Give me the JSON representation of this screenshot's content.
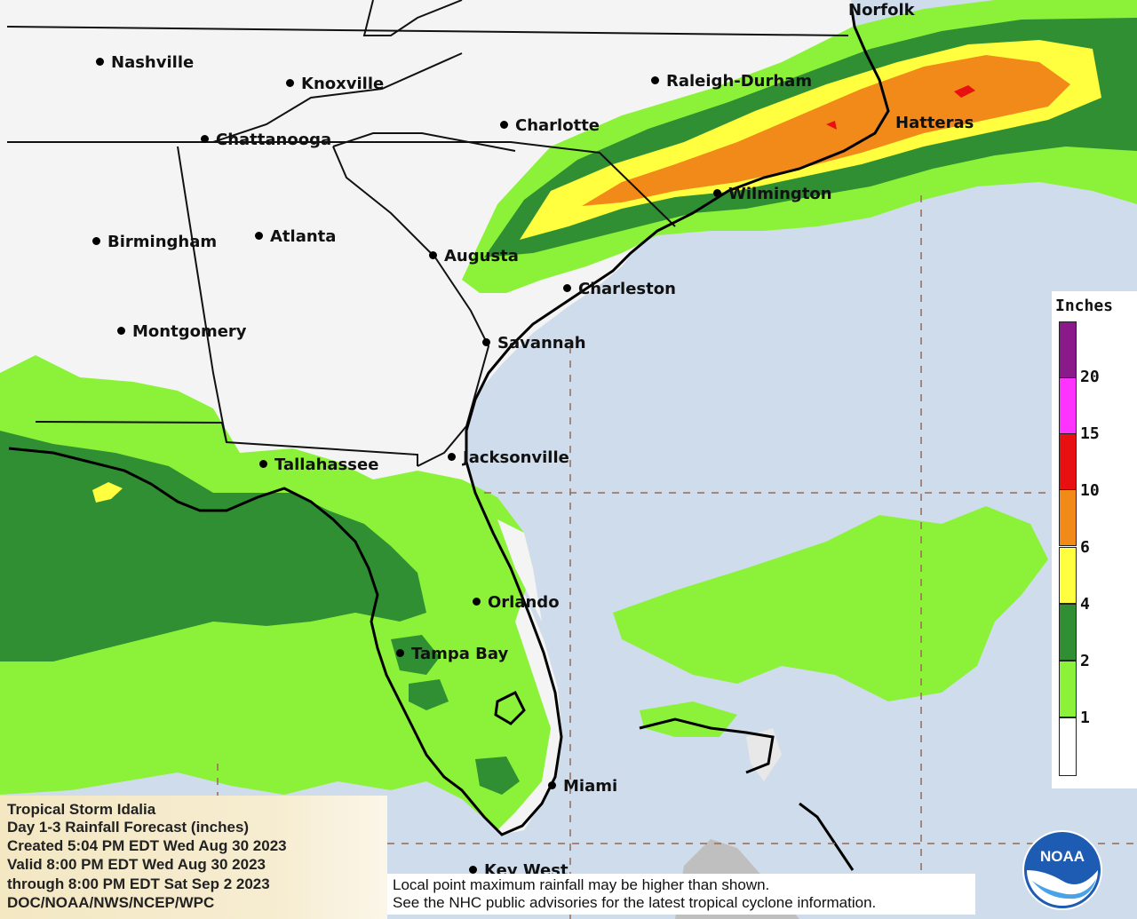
{
  "colors": {
    "ocean": "#cfdceb",
    "land": "#f4f4f4",
    "c_1_2": "#8cf239",
    "c_2_4": "#2f8f32",
    "c_4_6": "#ffff40",
    "c_6_10": "#f28a1a",
    "c_10_15": "#e81010",
    "c_15_20": "#ff33ff",
    "c_20_plus": "#8a1a8a",
    "lt1": "#ffffff"
  },
  "cities": [
    {
      "name": "Norfolk"
    },
    {
      "name": "Nashville"
    },
    {
      "name": "Knoxville"
    },
    {
      "name": "Raleigh-Durham"
    },
    {
      "name": "Charlotte"
    },
    {
      "name": "Chattanooga"
    },
    {
      "name": "Hatteras"
    },
    {
      "name": "Wilmington"
    },
    {
      "name": "Birmingham"
    },
    {
      "name": "Atlanta"
    },
    {
      "name": "Augusta"
    },
    {
      "name": "Charleston"
    },
    {
      "name": "Montgomery"
    },
    {
      "name": "Savannah"
    },
    {
      "name": "Tallahassee"
    },
    {
      "name": "Jacksonville"
    },
    {
      "name": "Orlando"
    },
    {
      "name": "Tampa Bay"
    },
    {
      "name": "Miami"
    },
    {
      "name": "Key West"
    }
  ],
  "legend": {
    "title": "Inches",
    "ticks": [
      "20",
      "15",
      "10",
      "6",
      "4",
      "2",
      "1"
    ],
    "bins": [
      {
        "color": "#8a1a8a"
      },
      {
        "color": "#ff33ff"
      },
      {
        "color": "#e81010"
      },
      {
        "color": "#f28a1a"
      },
      {
        "color": "#ffff40"
      },
      {
        "color": "#2f8f32"
      },
      {
        "color": "#8cf239"
      },
      {
        "color": "#ffffff"
      }
    ]
  },
  "info": {
    "line1": "Tropical Storm Idalia",
    "line2": "Day 1-3 Rainfall Forecast (inches)",
    "line3": "Created 5:04 PM EDT Wed Aug 30 2023",
    "line4": "Valid 8:00 PM EDT Wed Aug 30 2023",
    "line5": "through 8:00 PM EDT Sat Sep 2 2023",
    "line6": "DOC/NOAA/NWS/NCEP/WPC"
  },
  "disclaimer": {
    "line1": "Local point maximum rainfall may be higher than shown.",
    "line2": "See the NHC public advisories for the latest tropical cyclone information."
  },
  "logo": {
    "text": "NOAA",
    "icon": "noaa-logo"
  }
}
